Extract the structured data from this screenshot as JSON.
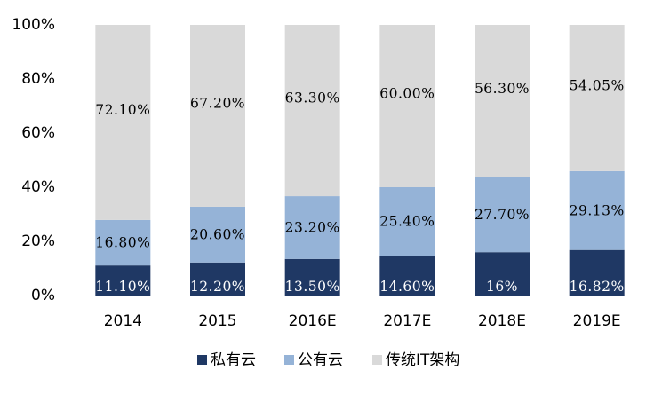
{
  "chart_data": {
    "type": "bar",
    "stacked": true,
    "percent_stacked": true,
    "categories": [
      "2014",
      "2015",
      "2016E",
      "2017E",
      "2018E",
      "2019E"
    ],
    "series": [
      {
        "name": "私有云",
        "values": [
          11.1,
          12.2,
          13.5,
          14.6,
          16,
          16.82
        ],
        "labels": [
          "11.10%",
          "12.20%",
          "13.50%",
          "14.60%",
          "16%",
          "16.82%"
        ],
        "color": "#1f3864",
        "label_color": "#ffffff"
      },
      {
        "name": "公有云",
        "values": [
          16.8,
          20.6,
          23.2,
          25.4,
          27.7,
          29.13
        ],
        "labels": [
          "16.80%",
          "20.60%",
          "23.20%",
          "25.40%",
          "27.70%",
          "29.13%"
        ],
        "color": "#95b3d7",
        "label_color": "#000000"
      },
      {
        "name": "传统IT架构",
        "values": [
          72.1,
          67.2,
          63.3,
          60.0,
          56.3,
          54.05
        ],
        "labels": [
          "72.10%",
          "67.20%",
          "63.30%",
          "60.00%",
          "56.30%",
          "54.05%"
        ],
        "color": "#d9d9d9",
        "label_color": "#000000"
      }
    ],
    "y_ticks": [
      "0%",
      "20%",
      "40%",
      "60%",
      "80%",
      "100%"
    ],
    "ylim": [
      0,
      100
    ],
    "legend_position": "bottom",
    "grid": false
  }
}
